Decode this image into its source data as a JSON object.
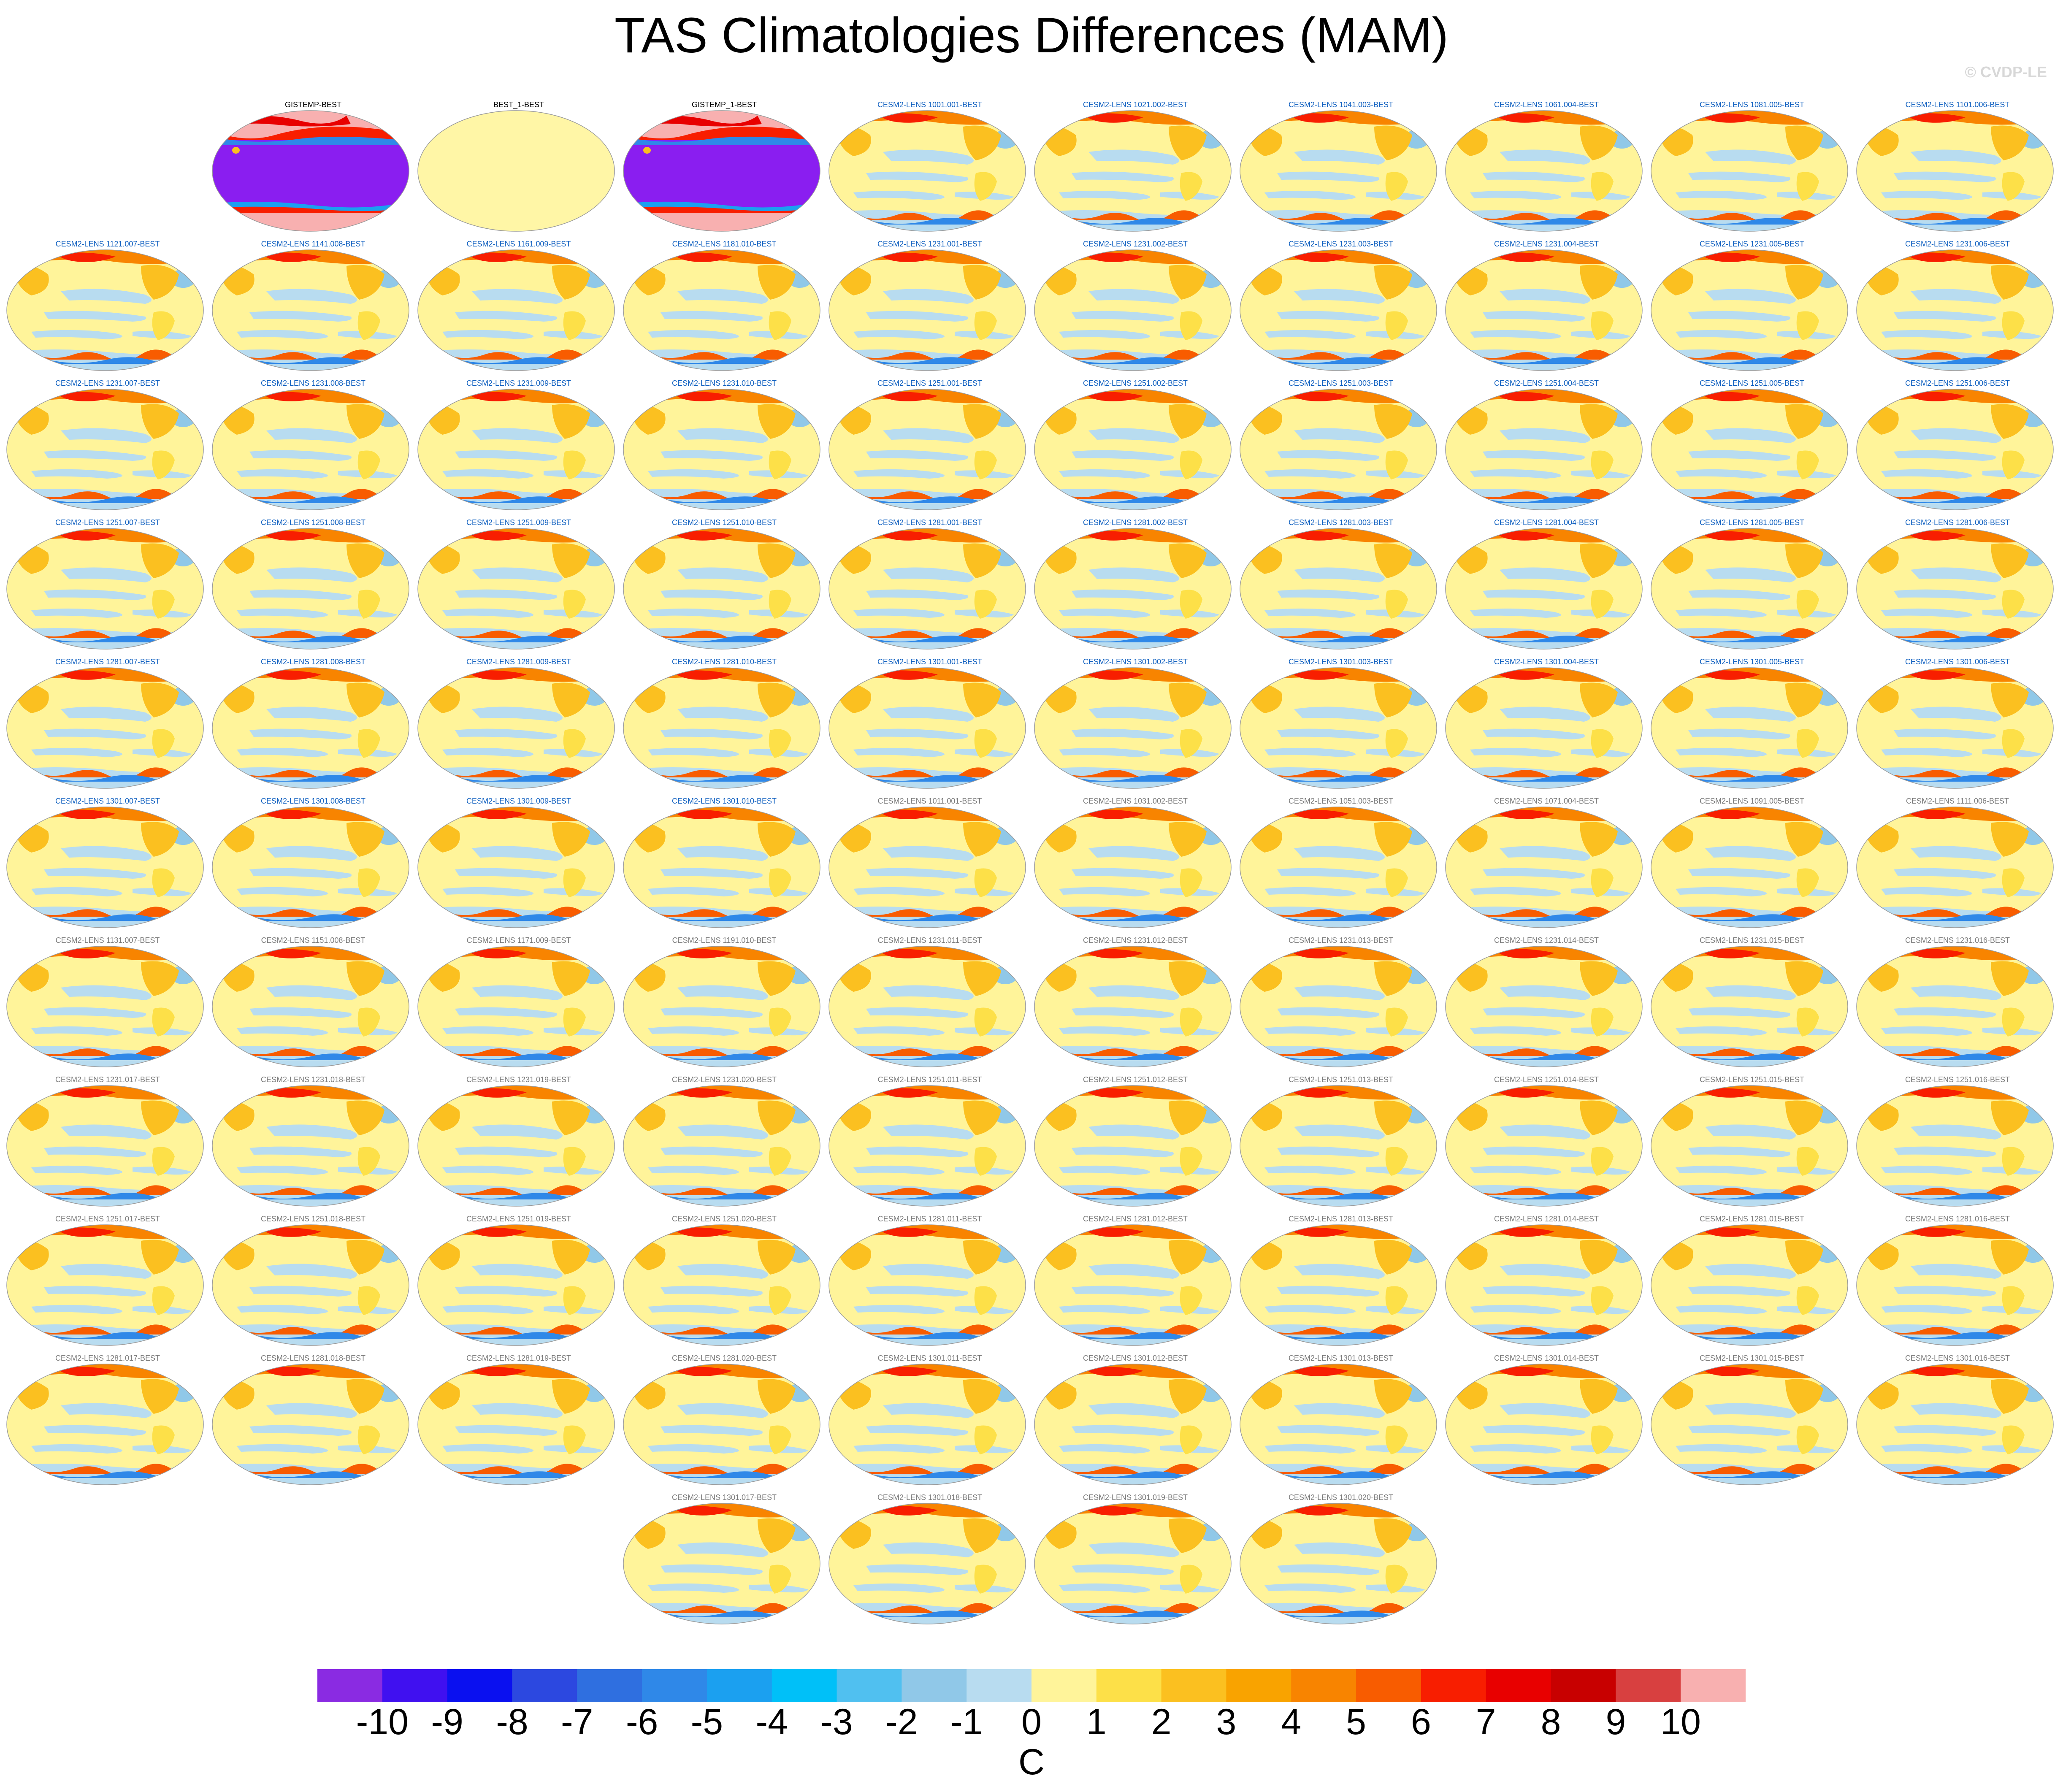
{
  "title": "TAS Climatologies Differences (MAM)",
  "credit": "© CVDP-LE",
  "colors": {
    "label_obs": "#000000",
    "label_highlight": "#1060c0",
    "label_model": "#7a7a7a"
  },
  "panels": [
    {
      "label": "GISTEMP-BEST",
      "style": "obs_purple"
    },
    {
      "label": "BEST_1-BEST",
      "style": "obs_flat"
    },
    {
      "label": "GISTEMP_1-BEST",
      "style": "obs_purple"
    },
    {
      "label": "CESM2-LENS 1001.001-BEST",
      "style": "model_blue"
    },
    {
      "label": "CESM2-LENS 1021.002-BEST",
      "style": "model_blue"
    },
    {
      "label": "CESM2-LENS 1041.003-BEST",
      "style": "model_blue"
    },
    {
      "label": "CESM2-LENS 1061.004-BEST",
      "style": "model_blue"
    },
    {
      "label": "CESM2-LENS 1081.005-BEST",
      "style": "model_blue"
    },
    {
      "label": "CESM2-LENS 1101.006-BEST",
      "style": "model_blue"
    },
    {
      "label": "CESM2-LENS 1121.007-BEST",
      "style": "model_blue"
    },
    {
      "label": "CESM2-LENS 1141.008-BEST",
      "style": "model_blue"
    },
    {
      "label": "CESM2-LENS 1161.009-BEST",
      "style": "model_blue"
    },
    {
      "label": "CESM2-LENS 1181.010-BEST",
      "style": "model_blue"
    },
    {
      "label": "CESM2-LENS 1231.001-BEST",
      "style": "model_blue"
    },
    {
      "label": "CESM2-LENS 1231.002-BEST",
      "style": "model_blue"
    },
    {
      "label": "CESM2-LENS 1231.003-BEST",
      "style": "model_blue"
    },
    {
      "label": "CESM2-LENS 1231.004-BEST",
      "style": "model_blue"
    },
    {
      "label": "CESM2-LENS 1231.005-BEST",
      "style": "model_blue"
    },
    {
      "label": "CESM2-LENS 1231.006-BEST",
      "style": "model_blue"
    },
    {
      "label": "CESM2-LENS 1231.007-BEST",
      "style": "model_blue"
    },
    {
      "label": "CESM2-LENS 1231.008-BEST",
      "style": "model_blue"
    },
    {
      "label": "CESM2-LENS 1231.009-BEST",
      "style": "model_blue"
    },
    {
      "label": "CESM2-LENS 1231.010-BEST",
      "style": "model_blue"
    },
    {
      "label": "CESM2-LENS 1251.001-BEST",
      "style": "model_blue"
    },
    {
      "label": "CESM2-LENS 1251.002-BEST",
      "style": "model_blue"
    },
    {
      "label": "CESM2-LENS 1251.003-BEST",
      "style": "model_blue"
    },
    {
      "label": "CESM2-LENS 1251.004-BEST",
      "style": "model_blue"
    },
    {
      "label": "CESM2-LENS 1251.005-BEST",
      "style": "model_blue"
    },
    {
      "label": "CESM2-LENS 1251.006-BEST",
      "style": "model_blue"
    },
    {
      "label": "CESM2-LENS 1251.007-BEST",
      "style": "model_blue"
    },
    {
      "label": "CESM2-LENS 1251.008-BEST",
      "style": "model_blue"
    },
    {
      "label": "CESM2-LENS 1251.009-BEST",
      "style": "model_blue"
    },
    {
      "label": "CESM2-LENS 1251.010-BEST",
      "style": "model_blue"
    },
    {
      "label": "CESM2-LENS 1281.001-BEST",
      "style": "model_blue"
    },
    {
      "label": "CESM2-LENS 1281.002-BEST",
      "style": "model_blue"
    },
    {
      "label": "CESM2-LENS 1281.003-BEST",
      "style": "model_blue"
    },
    {
      "label": "CESM2-LENS 1281.004-BEST",
      "style": "model_blue"
    },
    {
      "label": "CESM2-LENS 1281.005-BEST",
      "style": "model_blue"
    },
    {
      "label": "CESM2-LENS 1281.006-BEST",
      "style": "model_blue"
    },
    {
      "label": "CESM2-LENS 1281.007-BEST",
      "style": "model_blue"
    },
    {
      "label": "CESM2-LENS 1281.008-BEST",
      "style": "model_blue"
    },
    {
      "label": "CESM2-LENS 1281.009-BEST",
      "style": "model_blue"
    },
    {
      "label": "CESM2-LENS 1281.010-BEST",
      "style": "model_blue"
    },
    {
      "label": "CESM2-LENS 1301.001-BEST",
      "style": "model_blue"
    },
    {
      "label": "CESM2-LENS 1301.002-BEST",
      "style": "model_blue"
    },
    {
      "label": "CESM2-LENS 1301.003-BEST",
      "style": "model_blue"
    },
    {
      "label": "CESM2-LENS 1301.004-BEST",
      "style": "model_blue"
    },
    {
      "label": "CESM2-LENS 1301.005-BEST",
      "style": "model_blue"
    },
    {
      "label": "CESM2-LENS 1301.006-BEST",
      "style": "model_blue"
    },
    {
      "label": "CESM2-LENS 1301.007-BEST",
      "style": "model_blue"
    },
    {
      "label": "CESM2-LENS 1301.008-BEST",
      "style": "model_blue"
    },
    {
      "label": "CESM2-LENS 1301.009-BEST",
      "style": "model_blue"
    },
    {
      "label": "CESM2-LENS 1301.010-BEST",
      "style": "model_blue"
    },
    {
      "label": "CESM2-LENS 1011.001-BEST",
      "style": "model_gray"
    },
    {
      "label": "CESM2-LENS 1031.002-BEST",
      "style": "model_gray"
    },
    {
      "label": "CESM2-LENS 1051.003-BEST",
      "style": "model_gray"
    },
    {
      "label": "CESM2-LENS 1071.004-BEST",
      "style": "model_gray"
    },
    {
      "label": "CESM2-LENS 1091.005-BEST",
      "style": "model_gray"
    },
    {
      "label": "CESM2-LENS 1111.006-BEST",
      "style": "model_gray"
    },
    {
      "label": "CESM2-LENS 1131.007-BEST",
      "style": "model_gray"
    },
    {
      "label": "CESM2-LENS 1151.008-BEST",
      "style": "model_gray"
    },
    {
      "label": "CESM2-LENS 1171.009-BEST",
      "style": "model_gray"
    },
    {
      "label": "CESM2-LENS 1191.010-BEST",
      "style": "model_gray"
    },
    {
      "label": "CESM2-LENS 1231.011-BEST",
      "style": "model_gray"
    },
    {
      "label": "CESM2-LENS 1231.012-BEST",
      "style": "model_gray"
    },
    {
      "label": "CESM2-LENS 1231.013-BEST",
      "style": "model_gray"
    },
    {
      "label": "CESM2-LENS 1231.014-BEST",
      "style": "model_gray"
    },
    {
      "label": "CESM2-LENS 1231.015-BEST",
      "style": "model_gray"
    },
    {
      "label": "CESM2-LENS 1231.016-BEST",
      "style": "model_gray"
    },
    {
      "label": "CESM2-LENS 1231.017-BEST",
      "style": "model_gray"
    },
    {
      "label": "CESM2-LENS 1231.018-BEST",
      "style": "model_gray"
    },
    {
      "label": "CESM2-LENS 1231.019-BEST",
      "style": "model_gray"
    },
    {
      "label": "CESM2-LENS 1231.020-BEST",
      "style": "model_gray"
    },
    {
      "label": "CESM2-LENS 1251.011-BEST",
      "style": "model_gray"
    },
    {
      "label": "CESM2-LENS 1251.012-BEST",
      "style": "model_gray"
    },
    {
      "label": "CESM2-LENS 1251.013-BEST",
      "style": "model_gray"
    },
    {
      "label": "CESM2-LENS 1251.014-BEST",
      "style": "model_gray"
    },
    {
      "label": "CESM2-LENS 1251.015-BEST",
      "style": "model_gray"
    },
    {
      "label": "CESM2-LENS 1251.016-BEST",
      "style": "model_gray"
    },
    {
      "label": "CESM2-LENS 1251.017-BEST",
      "style": "model_gray"
    },
    {
      "label": "CESM2-LENS 1251.018-BEST",
      "style": "model_gray"
    },
    {
      "label": "CESM2-LENS 1251.019-BEST",
      "style": "model_gray"
    },
    {
      "label": "CESM2-LENS 1251.020-BEST",
      "style": "model_gray"
    },
    {
      "label": "CESM2-LENS 1281.011-BEST",
      "style": "model_gray"
    },
    {
      "label": "CESM2-LENS 1281.012-BEST",
      "style": "model_gray"
    },
    {
      "label": "CESM2-LENS 1281.013-BEST",
      "style": "model_gray"
    },
    {
      "label": "CESM2-LENS 1281.014-BEST",
      "style": "model_gray"
    },
    {
      "label": "CESM2-LENS 1281.015-BEST",
      "style": "model_gray"
    },
    {
      "label": "CESM2-LENS 1281.016-BEST",
      "style": "model_gray"
    },
    {
      "label": "CESM2-LENS 1281.017-BEST",
      "style": "model_gray"
    },
    {
      "label": "CESM2-LENS 1281.018-BEST",
      "style": "model_gray"
    },
    {
      "label": "CESM2-LENS 1281.019-BEST",
      "style": "model_gray"
    },
    {
      "label": "CESM2-LENS 1281.020-BEST",
      "style": "model_gray"
    },
    {
      "label": "CESM2-LENS 1301.011-BEST",
      "style": "model_gray"
    },
    {
      "label": "CESM2-LENS 1301.012-BEST",
      "style": "model_gray"
    },
    {
      "label": "CESM2-LENS 1301.013-BEST",
      "style": "model_gray"
    },
    {
      "label": "CESM2-LENS 1301.014-BEST",
      "style": "model_gray"
    },
    {
      "label": "CESM2-LENS 1301.015-BEST",
      "style": "model_gray"
    },
    {
      "label": "CESM2-LENS 1301.016-BEST",
      "style": "model_gray"
    },
    {
      "label": "CESM2-LENS 1301.017-BEST",
      "style": "model_gray"
    },
    {
      "label": "CESM2-LENS 1301.018-BEST",
      "style": "model_gray"
    },
    {
      "label": "CESM2-LENS 1301.019-BEST",
      "style": "model_gray"
    },
    {
      "label": "CESM2-LENS 1301.020-BEST",
      "style": "model_gray"
    }
  ],
  "colorbar": {
    "colors": [
      "#8a2be2",
      "#4010f0",
      "#0a10f0",
      "#2c48e0",
      "#2f6fe0",
      "#2f88e8",
      "#1ba0f0",
      "#00c0f8",
      "#50c0f0",
      "#90c8e8",
      "#b8dcf0",
      "#fff49a",
      "#fde048",
      "#fbc020",
      "#f9a300",
      "#f88400",
      "#f85c00",
      "#f81e00",
      "#e80000",
      "#c80000",
      "#d84040",
      "#f8b0b0"
    ],
    "tick_labels": [
      "-10",
      "-9",
      "-8",
      "-7",
      "-6",
      "-5",
      "-4",
      "-3",
      "-2",
      "-1",
      "0",
      "1",
      "2",
      "3",
      "4",
      "5",
      "6",
      "7",
      "8",
      "9",
      "10"
    ],
    "units": "C"
  }
}
